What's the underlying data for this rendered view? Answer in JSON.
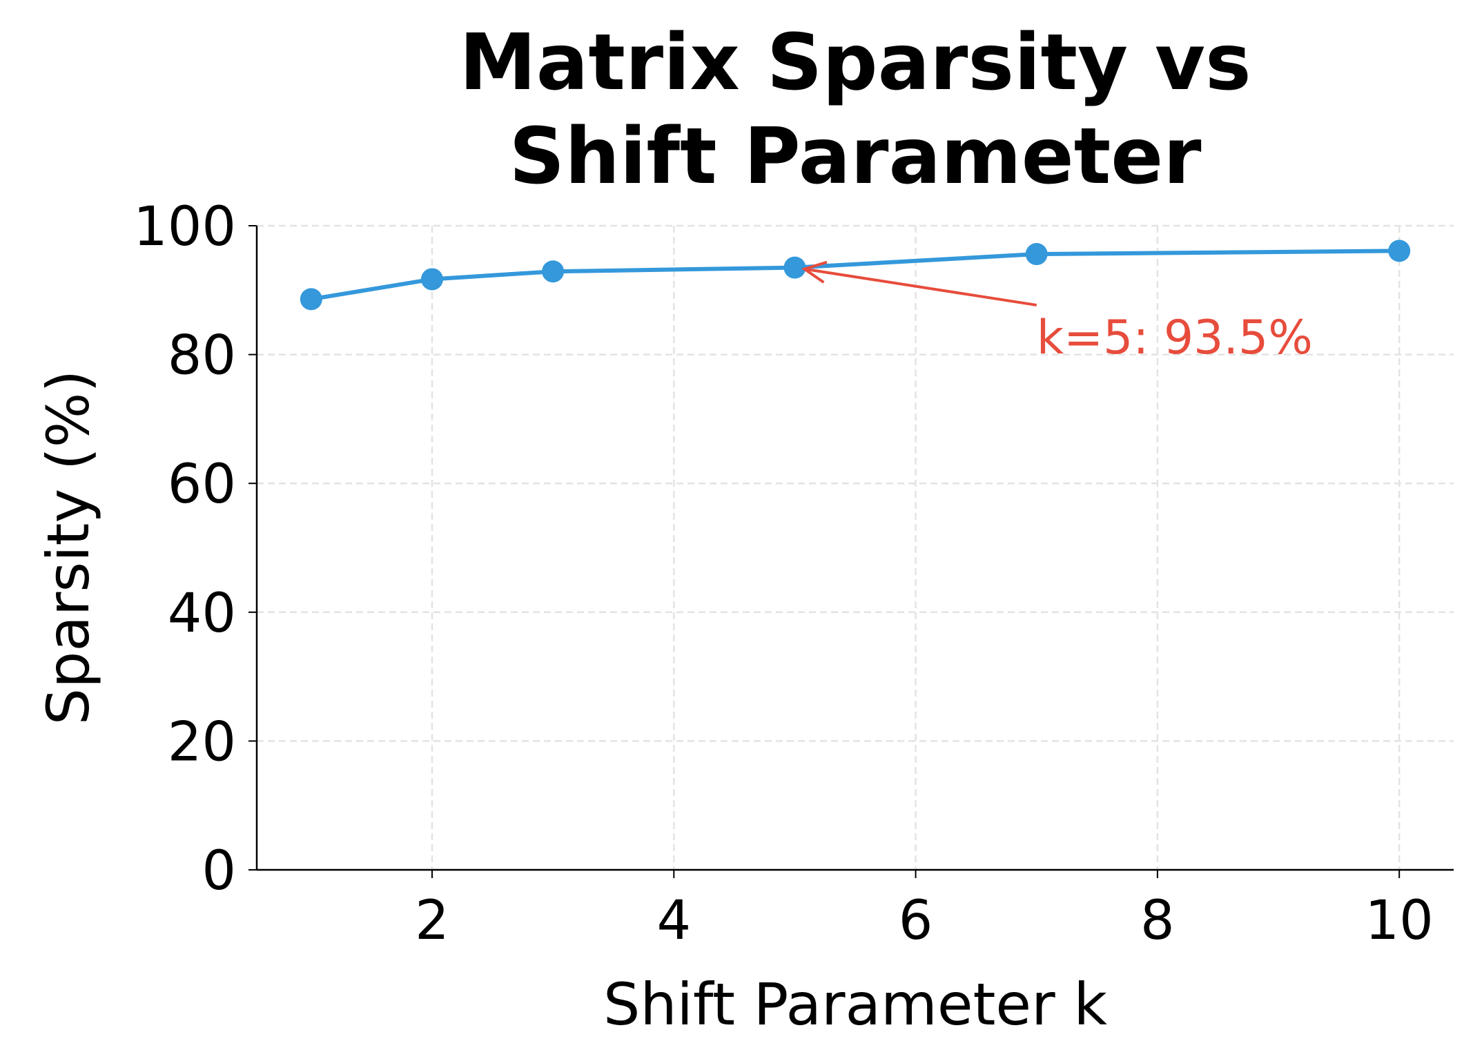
{
  "chart_data": {
    "type": "line",
    "title_lines": [
      "Matrix Sparsity vs",
      "Shift Parameter"
    ],
    "xlabel": "Shift Parameter k",
    "ylabel": "Sparsity (%)",
    "x": [
      1,
      2,
      3,
      5,
      7,
      10
    ],
    "series": [
      {
        "values": [
          88.6,
          91.7,
          92.9,
          93.5,
          95.6,
          96.1
        ],
        "color": "#3498db",
        "marker": "circle"
      }
    ],
    "xlim": [
      0.55,
      10.45
    ],
    "ylim": [
      0,
      100
    ],
    "xticks": [
      2,
      4,
      6,
      8,
      10
    ],
    "yticks": [
      0,
      20,
      40,
      60,
      80,
      100
    ],
    "grid": true,
    "grid_style": "dashed",
    "annotation": {
      "text": "k=5: 93.5%",
      "x": 5,
      "y": 93.5,
      "text_x": 7,
      "text_y": 85,
      "color": "#e74c3c"
    }
  }
}
